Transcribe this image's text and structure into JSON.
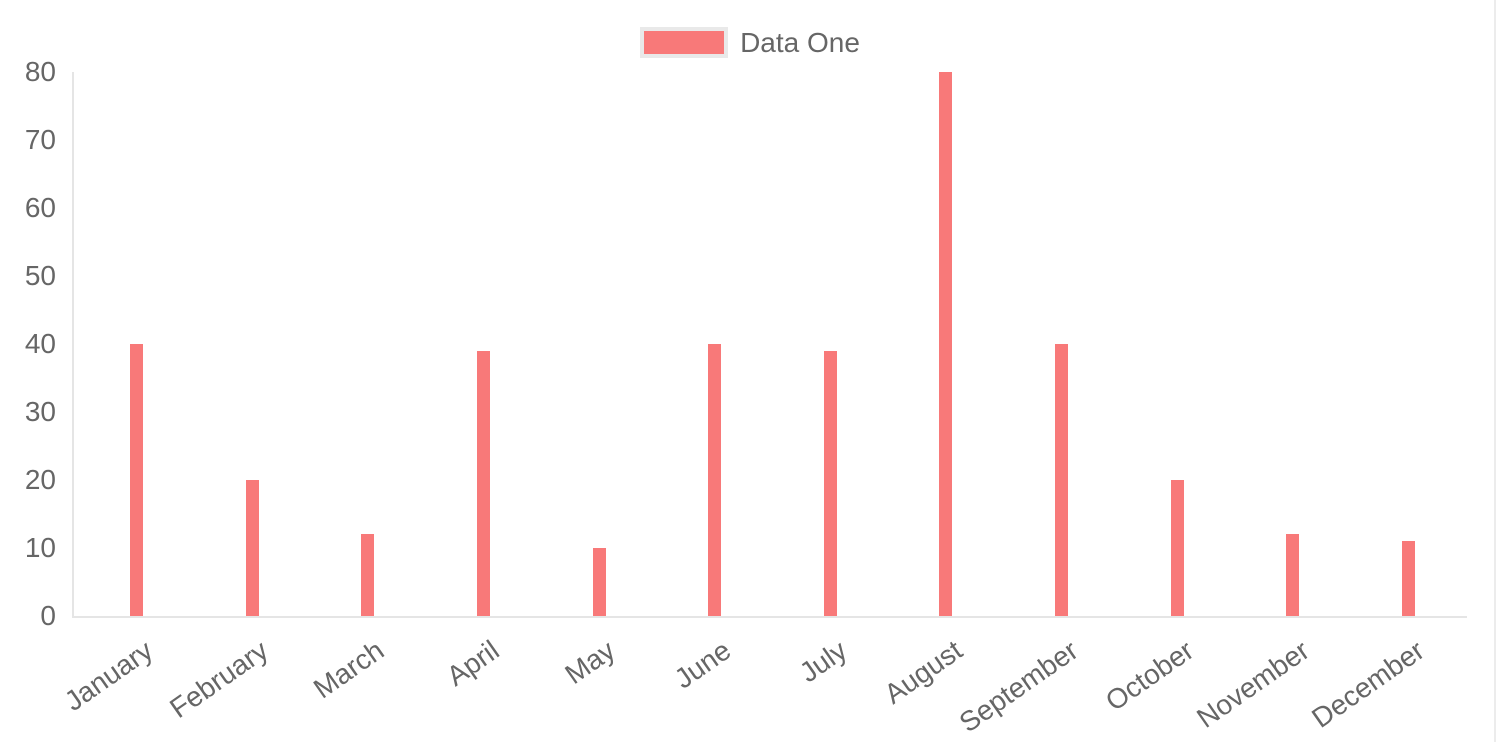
{
  "chart_data": {
    "type": "bar",
    "title": "",
    "categories": [
      "January",
      "February",
      "March",
      "April",
      "May",
      "June",
      "July",
      "August",
      "September",
      "October",
      "November",
      "December"
    ],
    "series": [
      {
        "name": "Data One",
        "color": "#f87979",
        "values": [
          40,
          20,
          12,
          39,
          10,
          40,
          39,
          80,
          40,
          20,
          12,
          11
        ]
      }
    ],
    "xlabel": "",
    "ylabel": "",
    "ylim": [
      0,
      80
    ],
    "y_ticks": [
      0,
      10,
      20,
      30,
      40,
      50,
      60,
      70,
      80
    ],
    "grid": false,
    "legend_position": "top",
    "x_label_rotation_deg": -35,
    "colors": {
      "bar_fill": "#f87979",
      "axis_line": "#e5e5e5",
      "tick_text": "#666666",
      "legend_box_border": "#e9e9e9"
    }
  }
}
